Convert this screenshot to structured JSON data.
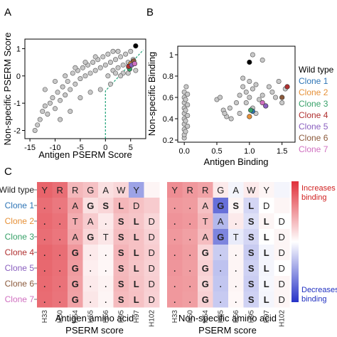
{
  "chart_data": [
    {
      "type": "scatter",
      "panel": "A",
      "xlabel": "Antigen PSERM Score",
      "ylabel": "Non-specific PSERM Score",
      "xlim": [
        -16,
        8
      ],
      "ylim": [
        -2.3,
        1.35
      ],
      "xticks": [
        -15,
        -10,
        -5,
        0,
        5
      ],
      "yticks": [
        -2,
        -1,
        0,
        1
      ],
      "grid": false,
      "points_gray": [
        [
          -14.0,
          -2.0
        ],
        [
          -13.5,
          -1.8
        ],
        [
          -13.0,
          -1.6
        ],
        [
          -12.5,
          -1.3
        ],
        [
          -12.0,
          -1.1
        ],
        [
          -11.5,
          -1.4
        ],
        [
          -11.0,
          -1.0
        ],
        [
          -10.5,
          -0.8
        ],
        [
          -10.0,
          -1.2
        ],
        [
          -9.5,
          -0.6
        ],
        [
          -9.0,
          -0.9
        ],
        [
          -8.5,
          -0.4
        ],
        [
          -8.0,
          -0.7
        ],
        [
          -7.5,
          -0.2
        ],
        [
          -7.0,
          -0.5
        ],
        [
          -6.5,
          0.1
        ],
        [
          -6.0,
          -0.3
        ],
        [
          -5.5,
          0.2
        ],
        [
          -5.0,
          -0.1
        ],
        [
          -4.5,
          0.3
        ],
        [
          -4.0,
          0.0
        ],
        [
          -3.5,
          0.4
        ],
        [
          -3.0,
          0.1
        ],
        [
          -2.5,
          0.5
        ],
        [
          -2.0,
          0.2
        ],
        [
          -1.5,
          0.6
        ],
        [
          -1.0,
          0.3
        ],
        [
          -0.5,
          0.7
        ],
        [
          0.0,
          0.4
        ],
        [
          0.5,
          0.8
        ],
        [
          1.0,
          0.5
        ],
        [
          1.5,
          0.2
        ],
        [
          2.0,
          0.6
        ],
        [
          2.5,
          0.3
        ],
        [
          3.0,
          0.7
        ],
        [
          3.5,
          0.4
        ],
        [
          4.0,
          0.8
        ],
        [
          4.5,
          0.5
        ],
        [
          5.0,
          0.9
        ],
        [
          5.5,
          0.6
        ],
        [
          6.0,
          0.2
        ],
        [
          -12.0,
          -0.5
        ],
        [
          -10.0,
          -0.2
        ],
        [
          -8.0,
          0.0
        ],
        [
          -6.0,
          0.3
        ],
        [
          -4.0,
          0.5
        ],
        [
          -2.0,
          0.7
        ],
        [
          -1.0,
          -0.5
        ],
        [
          0.5,
          0.0
        ],
        [
          1.5,
          0.9
        ],
        [
          2.5,
          0.9
        ],
        [
          3.5,
          0.1
        ],
        [
          4.5,
          0.1
        ],
        [
          -7.0,
          -1.3
        ],
        [
          -9.0,
          -1.6
        ],
        [
          -3.0,
          -0.6
        ],
        [
          -5.0,
          -0.8
        ],
        [
          1.0,
          -0.3
        ],
        [
          3.0,
          0.0
        ],
        [
          2.0,
          0.1
        ]
      ],
      "special_points": [
        {
          "label": "Wild type",
          "x": 6.0,
          "y": 1.1,
          "color": "#000000"
        },
        {
          "label": "Clone 1",
          "x": 5.4,
          "y": 0.5,
          "color": "#2e75b6"
        },
        {
          "label": "Clone 2",
          "x": 5.0,
          "y": 0.45,
          "color": "#e69138"
        },
        {
          "label": "Clone 3",
          "x": 4.8,
          "y": 0.25,
          "color": "#38a169"
        },
        {
          "label": "Clone 4",
          "x": 4.6,
          "y": 0.35,
          "color": "#b03030"
        },
        {
          "label": "Clone 5",
          "x": 5.2,
          "y": 0.4,
          "color": "#8a5fbf"
        },
        {
          "label": "Clone 6",
          "x": 5.6,
          "y": 0.55,
          "color": "#8b5a3c"
        },
        {
          "label": "Clone 7",
          "x": 5.8,
          "y": 0.45,
          "color": "#d070c0"
        }
      ],
      "threshold_line": [
        [
          0.0,
          -2.3
        ],
        [
          0.0,
          -0.55
        ],
        [
          7.5,
          0.95
        ]
      ]
    },
    {
      "type": "scatter",
      "panel": "B",
      "xlabel": "Antigen Binding",
      "ylabel": "Non-specific Binding",
      "xlim": [
        -0.1,
        1.7
      ],
      "ylim": [
        0.18,
        1.08
      ],
      "xticks": [
        0,
        0.5,
        1,
        1.5
      ],
      "xticklabels": [
        "0.0",
        "0.5",
        "1.0",
        "1.5"
      ],
      "yticks": [
        0.2,
        0.4,
        0.6,
        0.8,
        1
      ],
      "yticklabels": [
        "0.2",
        "0.4",
        "0.6",
        "0.8",
        "1"
      ],
      "grid": false,
      "points_gray": [
        [
          0.0,
          0.22
        ],
        [
          0.0,
          0.25
        ],
        [
          0.0,
          0.3
        ],
        [
          0.0,
          0.35
        ],
        [
          0.0,
          0.4
        ],
        [
          0.0,
          0.45
        ],
        [
          0.0,
          0.5
        ],
        [
          0.0,
          0.55
        ],
        [
          0.0,
          0.6
        ],
        [
          0.0,
          0.65
        ],
        [
          0.02,
          0.28
        ],
        [
          0.02,
          0.38
        ],
        [
          0.02,
          0.48
        ],
        [
          0.02,
          0.58
        ],
        [
          0.05,
          0.33
        ],
        [
          0.05,
          0.43
        ],
        [
          0.05,
          0.53
        ],
        [
          0.05,
          0.63
        ],
        [
          0.03,
          0.7
        ],
        [
          0.5,
          0.58
        ],
        [
          0.55,
          0.6
        ],
        [
          0.6,
          0.48
        ],
        [
          0.65,
          0.42
        ],
        [
          0.7,
          0.5
        ],
        [
          0.72,
          0.4
        ],
        [
          0.8,
          0.55
        ],
        [
          0.85,
          0.62
        ],
        [
          0.9,
          0.7
        ],
        [
          0.95,
          0.65
        ],
        [
          0.95,
          0.55
        ],
        [
          1.0,
          0.75
        ],
        [
          1.0,
          0.6
        ],
        [
          1.05,
          0.5
        ],
        [
          1.05,
          0.68
        ],
        [
          1.1,
          0.72
        ],
        [
          1.1,
          0.45
        ],
        [
          1.15,
          0.58
        ],
        [
          1.2,
          0.62
        ],
        [
          1.25,
          0.52
        ],
        [
          1.3,
          0.7
        ],
        [
          1.35,
          0.65
        ],
        [
          1.4,
          0.6
        ],
        [
          1.45,
          0.75
        ],
        [
          1.5,
          0.55
        ],
        [
          1.05,
          1.0
        ],
        [
          1.2,
          0.95
        ],
        [
          0.9,
          0.78
        ],
        [
          1.55,
          0.68
        ],
        [
          0.62,
          0.45
        ],
        [
          0.85,
          0.45
        ]
      ],
      "special_points": [
        {
          "label": "Wild type",
          "x": 1.0,
          "y": 0.93,
          "color": "#000000"
        },
        {
          "label": "Clone 1",
          "x": 1.05,
          "y": 0.47,
          "color": "#2e75b6"
        },
        {
          "label": "Clone 2",
          "x": 1.0,
          "y": 0.42,
          "color": "#e69138"
        },
        {
          "label": "Clone 3",
          "x": 1.02,
          "y": 0.48,
          "color": "#38a169"
        },
        {
          "label": "Clone 4",
          "x": 1.58,
          "y": 0.7,
          "color": "#b03030"
        },
        {
          "label": "Clone 5",
          "x": 1.25,
          "y": 0.52,
          "color": "#8a5fbf"
        },
        {
          "label": "Clone 6",
          "x": 1.5,
          "y": 0.6,
          "color": "#8b5a3c"
        },
        {
          "label": "Clone 7",
          "x": 1.2,
          "y": 0.55,
          "color": "#d070c0"
        }
      ],
      "legend": {
        "placement": "right",
        "entries": [
          {
            "label": "Wild type",
            "color": "#000000"
          },
          {
            "label": "Clone 1",
            "color": "#2e75b6"
          },
          {
            "label": "Clone 2",
            "color": "#e69138"
          },
          {
            "label": "Clone 3",
            "color": "#38a169"
          },
          {
            "label": "Clone 4",
            "color": "#b03030"
          },
          {
            "label": "Clone 5",
            "color": "#8a5fbf"
          },
          {
            "label": "Clone 6",
            "color": "#8b5a3c"
          },
          {
            "label": "Clone 7",
            "color": "#d070c0"
          }
        ]
      }
    },
    {
      "type": "heatmap",
      "panel": "C",
      "rows": [
        {
          "label": "Wild type",
          "color": "#222222"
        },
        {
          "label": "Clone 1",
          "color": "#2e75b6"
        },
        {
          "label": "Clone 2",
          "color": "#e69138"
        },
        {
          "label": "Clone 3",
          "color": "#38a169"
        },
        {
          "label": "Clone 4",
          "color": "#b03030"
        },
        {
          "label": "Clone 5",
          "color": "#8a5fbf"
        },
        {
          "label": "Clone 6",
          "color": "#8b5a3c"
        },
        {
          "label": "Clone 7",
          "color": "#d070c0"
        }
      ],
      "columns": [
        "H33",
        "H50",
        "H54",
        "H55",
        "H56",
        "H95",
        "H97",
        "H102"
      ],
      "sequences": [
        [
          "Y",
          "R",
          "R",
          "G",
          "A",
          "W",
          "Y",
          ""
        ],
        [
          ".",
          ".",
          "A",
          "G",
          "S",
          "L",
          "D",
          ""
        ],
        [
          ".",
          ".",
          "T",
          "A",
          ".",
          "S",
          "L",
          "D"
        ],
        [
          ".",
          ".",
          "A",
          "G",
          "T",
          "S",
          "L",
          "D"
        ],
        [
          ".",
          ".",
          "G",
          ".",
          ".",
          "S",
          "L",
          "D"
        ],
        [
          ".",
          ".",
          "G",
          ".",
          ".",
          "S",
          "L",
          "D"
        ],
        [
          ".",
          ".",
          "G",
          ".",
          ".",
          "S",
          "L",
          "D"
        ],
        [
          ".",
          ".",
          "G",
          ".",
          ".",
          "S",
          "L",
          "D"
        ]
      ],
      "bold_cells": "S and L and G mutations",
      "heatmaps": [
        {
          "name": "antigen",
          "xlabel_line1": "Antigen amino acid",
          "xlabel_line2": "PSERM score",
          "values": [
            [
              0.75,
              0.7,
              0.35,
              0.3,
              0.15,
              0.2,
              -0.45,
              0.05
            ],
            [
              0.7,
              0.65,
              0.45,
              0.15,
              0.2,
              0.35,
              0.3,
              0.25
            ],
            [
              0.72,
              0.68,
              0.4,
              0.25,
              0.1,
              0.3,
              0.28,
              0.2
            ],
            [
              0.7,
              0.66,
              0.42,
              0.2,
              0.12,
              0.32,
              0.3,
              0.22
            ],
            [
              0.74,
              0.7,
              0.5,
              0.1,
              0.05,
              0.36,
              0.3,
              0.24
            ],
            [
              0.73,
              0.69,
              0.48,
              0.08,
              0.04,
              0.34,
              0.28,
              0.22
            ],
            [
              0.72,
              0.68,
              0.46,
              0.1,
              0.06,
              0.35,
              0.29,
              0.23
            ],
            [
              0.71,
              0.67,
              0.45,
              0.12,
              0.05,
              0.33,
              0.3,
              0.22
            ]
          ]
        },
        {
          "name": "non-specific",
          "xlabel_line1": "Non-specific amino acid",
          "xlabel_line2": "PSERM score",
          "values": [
            [
              0.55,
              0.5,
              0.45,
              0.1,
              -0.05,
              0.1,
              0.05,
              -0.05
            ],
            [
              0.5,
              0.48,
              0.3,
              -0.7,
              0.05,
              -0.2,
              0.0,
              0.05
            ],
            [
              0.52,
              0.5,
              0.35,
              -0.35,
              0.1,
              -0.15,
              0.05,
              0.0
            ],
            [
              0.5,
              0.46,
              0.32,
              -0.6,
              -0.1,
              -0.2,
              0.0,
              0.05
            ],
            [
              0.52,
              0.48,
              0.2,
              -0.25,
              0.05,
              -0.25,
              -0.05,
              0.05
            ],
            [
              0.51,
              0.47,
              0.22,
              -0.3,
              0.05,
              -0.22,
              -0.05,
              0.0
            ],
            [
              0.5,
              0.48,
              0.2,
              -0.28,
              0.05,
              -0.24,
              -0.04,
              0.05
            ],
            [
              0.5,
              0.47,
              0.22,
              -0.26,
              0.04,
              -0.22,
              -0.05,
              0.05
            ]
          ]
        }
      ],
      "colorbar": {
        "top_label_line1": "Increases",
        "top_label_line2": "binding",
        "bottom_label_line1": "Decreases",
        "bottom_label_line2": "binding",
        "top_color": "#e0303a",
        "mid_color": "#ffffff",
        "bottom_color": "#2633c8"
      }
    }
  ],
  "panel_labels": {
    "a": "A",
    "b": "B",
    "c": "C"
  }
}
